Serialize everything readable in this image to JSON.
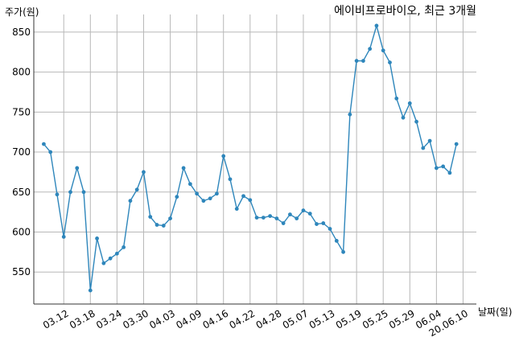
{
  "chart_data": {
    "type": "line",
    "title": "에이비프로바이오, 최근 3개월",
    "xlabel": "날짜(일)",
    "ylabel": "주가(원)",
    "ylim": [
      510,
      872
    ],
    "y_ticks": [
      550,
      600,
      650,
      700,
      750,
      800,
      850
    ],
    "x_tick_labels": [
      "03.12",
      "03.18",
      "03.24",
      "03.30",
      "04.03",
      "04.09",
      "04.16",
      "04.22",
      "04.28",
      "05.07",
      "05.13",
      "05.19",
      "05.25",
      "05.29",
      "06.04",
      "20.06.10"
    ],
    "x_tick_index": [
      3,
      7,
      11,
      15,
      19,
      23,
      27,
      31,
      35,
      39,
      43,
      47,
      51,
      55,
      59,
      63
    ],
    "x_range": [
      -1.5,
      65
    ],
    "grid": true,
    "line_color": "#2e86bb",
    "series": [
      {
        "values": [
          710,
          700,
          647,
          594,
          650,
          680,
          650,
          527,
          592,
          561,
          567,
          573,
          581,
          639,
          653,
          675,
          619,
          609,
          608,
          617,
          644,
          680,
          660,
          648,
          639,
          642,
          648,
          695,
          666,
          629,
          645,
          640,
          618,
          618,
          620,
          617,
          611,
          622,
          617,
          627,
          623,
          610,
          611,
          604,
          589,
          575,
          747,
          814,
          814,
          829,
          858,
          827,
          812,
          767,
          743,
          761,
          738,
          705,
          714,
          680,
          682,
          674,
          710
        ]
      }
    ]
  }
}
